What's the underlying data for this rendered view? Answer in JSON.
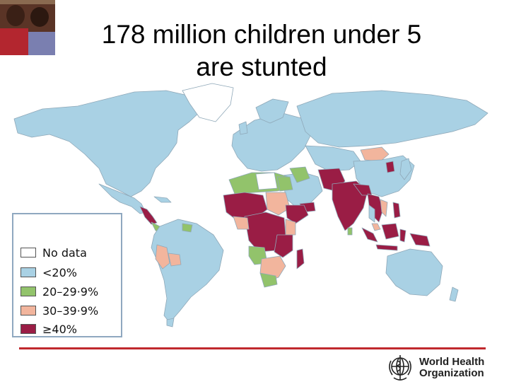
{
  "slide": {
    "title_line1": "178 million children under 5",
    "title_line2": "are stunted"
  },
  "legend": {
    "items": [
      {
        "label": "No data",
        "color": "#ffffff"
      },
      {
        "label": "<20%",
        "color": "#a9d1e4"
      },
      {
        "label": "20–29·9%",
        "color": "#92c36b"
      },
      {
        "label": "30–39·9%",
        "color": "#f2b59d"
      },
      {
        "label": "≥40%",
        "color": "#9a1d45"
      }
    ]
  },
  "map": {
    "ocean_color": "#ffffff",
    "border_color": "#8fa8b8"
  },
  "branding": {
    "org_line1": "World Health",
    "org_line2": "Organization",
    "emblem": "who-emblem-icon",
    "rule_color": "#c0282d"
  }
}
